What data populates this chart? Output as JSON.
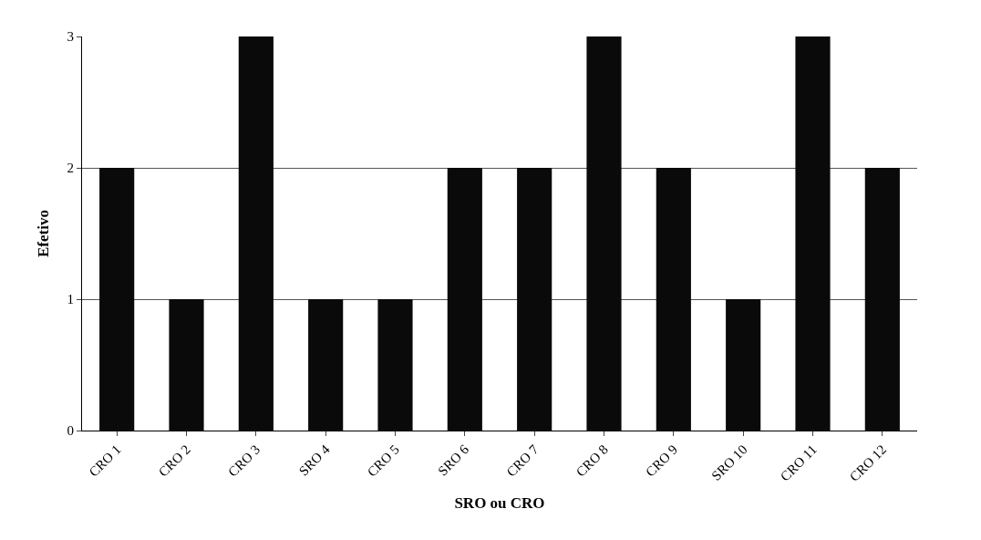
{
  "chart_data": {
    "type": "bar",
    "xlabel": "SRO ou CRO",
    "ylabel": "Efetivo",
    "categories": [
      "CRO 1",
      "CRO 2",
      "CRO 3",
      "SRO 4",
      "CRO 5",
      "SRO 6",
      "CRO 7",
      "CRO 8",
      "CRO 9",
      "SRO 10",
      "CRO 11",
      "CRO 12"
    ],
    "values": [
      2,
      1,
      3,
      1,
      1,
      2,
      2,
      3,
      2,
      1,
      3,
      2
    ],
    "color": "#0a0a0a",
    "ylim": [
      0,
      3
    ],
    "yticks": [
      0,
      1,
      2,
      3
    ],
    "grid": "y"
  }
}
